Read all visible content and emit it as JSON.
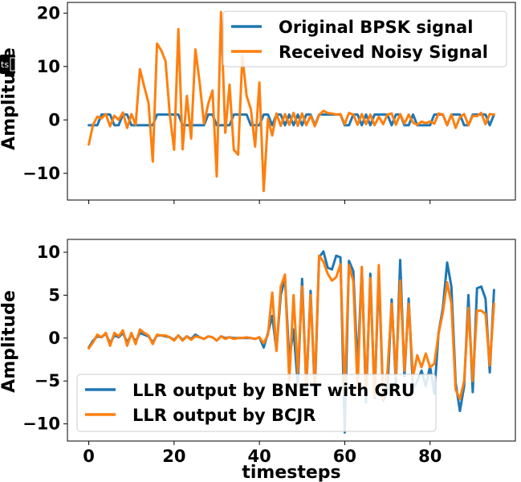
{
  "badge": {
    "text": "ts"
  },
  "chart_data": [
    {
      "type": "line",
      "title": "",
      "xlabel": "",
      "ylabel": "Amplitude",
      "xlim": [
        -5,
        100
      ],
      "ylim": [
        -15,
        22
      ],
      "xticks": [
        0,
        20,
        40,
        60,
        80
      ],
      "yticks": [
        -10,
        0,
        10,
        20
      ],
      "ytick_labels": [
        "−10",
        "0",
        "10",
        "20"
      ],
      "show_xtick_labels": false,
      "grid": false,
      "legend_position": "top-right",
      "x": [
        0,
        1,
        2,
        3,
        4,
        5,
        6,
        7,
        8,
        9,
        10,
        11,
        12,
        13,
        14,
        15,
        16,
        17,
        18,
        19,
        20,
        21,
        22,
        23,
        24,
        25,
        26,
        27,
        28,
        29,
        30,
        31,
        32,
        33,
        34,
        35,
        36,
        37,
        38,
        39,
        40,
        41,
        42,
        43,
        44,
        45,
        46,
        47,
        48,
        49,
        50,
        51,
        52,
        53,
        54,
        55,
        56,
        57,
        58,
        59,
        60,
        61,
        62,
        63,
        64,
        65,
        66,
        67,
        68,
        69,
        70,
        71,
        72,
        73,
        74,
        75,
        76,
        77,
        78,
        79,
        80,
        81,
        82,
        83,
        84,
        85,
        86,
        87,
        88,
        89,
        90,
        91,
        92,
        93,
        94,
        95
      ],
      "series": [
        {
          "name": "Original BPSK signal",
          "color": "#1f77b4",
          "values": [
            -1,
            -1,
            -1,
            1,
            1,
            1,
            -1,
            -1,
            1,
            1,
            -1,
            -1,
            -1,
            -1,
            -1,
            -1,
            1,
            1,
            1,
            1,
            1,
            1,
            -1,
            -1,
            -1,
            -1,
            -1,
            -1,
            1,
            1,
            -1,
            -1,
            -1,
            -1,
            1,
            1,
            1,
            1,
            -1,
            -1,
            -1,
            1,
            1,
            -1,
            1,
            1,
            -1,
            1,
            -1,
            1,
            -1,
            1,
            1,
            -1,
            1,
            1,
            1,
            1,
            1,
            1,
            -1,
            -1,
            1,
            1,
            -1,
            1,
            -1,
            1,
            1,
            1,
            1,
            -1,
            1,
            1,
            -1,
            -1,
            1,
            -1,
            -1,
            -1,
            -1,
            1,
            1,
            1,
            -1,
            1,
            1,
            1,
            -1,
            -1,
            1,
            1,
            1,
            1,
            -1,
            1
          ]
        },
        {
          "name": "Received Noisy Signal",
          "color": "#ff7f0e",
          "values": [
            -4.6,
            -0.9,
            0.6,
            0.3,
            1.1,
            -1.2,
            0.8,
            0.0,
            1.4,
            -1.5,
            1.1,
            -0.9,
            9.5,
            6.2,
            3.2,
            -7.8,
            14.3,
            13.0,
            11.0,
            1.0,
            -5.6,
            17.0,
            -5.5,
            4.5,
            -3.5,
            13.2,
            7.0,
            -0.7,
            3.0,
            5.5,
            -10.6,
            20.2,
            -2.4,
            6.6,
            -5.6,
            -6.5,
            12.0,
            4.5,
            2.0,
            -5.0,
            7.0,
            -13.3,
            0.2,
            -2.9,
            1.2,
            -1.1,
            1.1,
            -0.9,
            1.3,
            -1.1,
            1.2,
            -1.0,
            0.8,
            -1.2,
            0.9,
            1.7,
            1.3,
            1.2,
            1.0,
            1.1,
            -0.8,
            1.3,
            1.0,
            -0.9,
            1.1,
            -0.8,
            1.0,
            -1.0,
            0.6,
            -0.8,
            1.0,
            1.2,
            -0.9,
            1.1,
            -0.7,
            1.0,
            -0.5,
            -0.9,
            -0.3,
            -0.6,
            -0.3,
            -0.7,
            1.2,
            1.0,
            -1.0,
            1.0,
            -1.5,
            0.5,
            1.1,
            -1.0,
            0.8,
            0.7,
            1.3,
            -0.8,
            1.1,
            1.0
          ]
        }
      ]
    },
    {
      "type": "line",
      "title": "",
      "xlabel": "timesteps",
      "ylabel": "Amplitude",
      "xlim": [
        -5,
        100
      ],
      "ylim": [
        -12,
        11.5
      ],
      "xticks": [
        0,
        20,
        40,
        60,
        80
      ],
      "yticks": [
        -10,
        -5,
        0,
        5,
        10
      ],
      "ytick_labels": [
        "−10",
        "−5",
        "0",
        "5",
        "10"
      ],
      "show_xtick_labels": true,
      "grid": false,
      "legend_position": "lower-left",
      "x": [
        0,
        1,
        2,
        3,
        4,
        5,
        6,
        7,
        8,
        9,
        10,
        11,
        12,
        13,
        14,
        15,
        16,
        17,
        18,
        19,
        20,
        21,
        22,
        23,
        24,
        25,
        26,
        27,
        28,
        29,
        30,
        31,
        32,
        33,
        34,
        35,
        36,
        37,
        38,
        39,
        40,
        41,
        42,
        43,
        44,
        45,
        46,
        47,
        48,
        49,
        50,
        51,
        52,
        53,
        54,
        55,
        56,
        57,
        58,
        59,
        60,
        61,
        62,
        63,
        64,
        65,
        66,
        67,
        68,
        69,
        70,
        71,
        72,
        73,
        74,
        75,
        76,
        77,
        78,
        79,
        80,
        81,
        82,
        83,
        84,
        85,
        86,
        87,
        88,
        89,
        90,
        91,
        92,
        93,
        94,
        95
      ],
      "series": [
        {
          "name": "LLR output by BNET with GRU",
          "color": "#1f77b4",
          "values": [
            -1.1,
            -0.3,
            0.2,
            0.1,
            0.5,
            -0.6,
            0.3,
            0.1,
            0.6,
            -0.5,
            0.4,
            -0.4,
            0.6,
            0.4,
            0.2,
            -0.5,
            0.3,
            0.3,
            0.2,
            0.1,
            -0.2,
            0.3,
            -0.2,
            0.2,
            -0.1,
            0.4,
            0.1,
            -0.1,
            0.2,
            0.1,
            -0.3,
            0.2,
            0.0,
            0.1,
            0.0,
            0.0,
            0.0,
            0.0,
            0.0,
            -0.1,
            0.1,
            -1.1,
            0.6,
            2.6,
            -1.4,
            5.0,
            7.0,
            -2.5,
            1.0,
            -5.5,
            6.9,
            -5.8,
            5.5,
            -6.3,
            9.4,
            10.1,
            8.2,
            8.0,
            9.6,
            9.4,
            -11.0,
            9.0,
            7.8,
            -3.6,
            8.2,
            -7.5,
            7.5,
            -7.0,
            7.6,
            -7.3,
            -6.2,
            4.5,
            -5.3,
            9.1,
            -4.5,
            4.6,
            -6.0,
            -5.0,
            -3.8,
            -5.6,
            -3.3,
            -6.5,
            0.6,
            3.5,
            8.8,
            6.0,
            -5.2,
            -8.5,
            -5.6,
            5.0,
            -6.3,
            5.8,
            6.0,
            4.6,
            -4.0,
            5.6
          ]
        },
        {
          "name": "LLR output by BCJR",
          "color": "#ff7f0e",
          "values": [
            -1.2,
            -0.5,
            0.4,
            0.1,
            0.6,
            -0.9,
            0.6,
            0.2,
            0.9,
            -0.9,
            0.6,
            -0.7,
            1.0,
            0.6,
            0.3,
            -0.7,
            0.4,
            0.3,
            0.3,
            0.1,
            -0.3,
            0.3,
            -0.3,
            0.2,
            -0.2,
            0.2,
            0.1,
            -0.1,
            0.2,
            0.1,
            -0.3,
            0.2,
            -0.1,
            0.1,
            -0.1,
            0.0,
            0.0,
            0.1,
            0.0,
            -0.1,
            0.1,
            -0.6,
            0.4,
            5.3,
            -1.5,
            6.0,
            7.4,
            -5.0,
            5.0,
            -4.0,
            6.0,
            -5.4,
            5.0,
            -5.5,
            9.6,
            8.9,
            7.5,
            6.7,
            7.1,
            8.6,
            -6.5,
            8.5,
            6.6,
            -6.0,
            8.3,
            -6.5,
            7.0,
            -6.8,
            8.5,
            -7.2,
            -4.0,
            4.0,
            -4.5,
            6.7,
            -3.8,
            4.0,
            -4.5,
            -2.0,
            -3.4,
            -1.8,
            -3.4,
            -3.0,
            0.5,
            3.0,
            6.5,
            4.0,
            -6.0,
            -7.1,
            -5.0,
            3.5,
            -5.0,
            3.2,
            3.2,
            2.8,
            -3.2,
            4.0
          ]
        }
      ]
    }
  ]
}
